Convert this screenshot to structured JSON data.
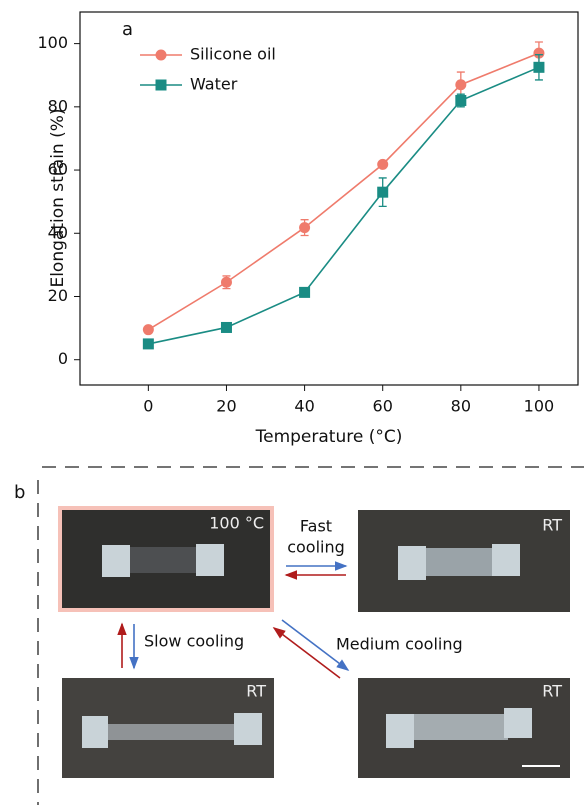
{
  "chart_data": {
    "type": "line",
    "panel_label": "a",
    "x_label": "Temperature (°C)",
    "y_label": "Elongation strain (%)",
    "x": [
      0,
      20,
      40,
      60,
      80,
      100
    ],
    "series": [
      {
        "name": "Silicone oil",
        "color": "#ef7b6c",
        "marker": "circle",
        "values": [
          9.5,
          24.5,
          41.8,
          61.8,
          87,
          97
        ],
        "errors": [
          0.5,
          2,
          2.5,
          0.8,
          4,
          3.5
        ]
      },
      {
        "name": "Water",
        "color": "#1a8c84",
        "marker": "square",
        "values": [
          5,
          10.2,
          21.3,
          53,
          82,
          92.5
        ],
        "errors": [
          0.5,
          0.5,
          0.8,
          4.5,
          2,
          4
        ]
      }
    ],
    "xlim": [
      -17.5,
      110
    ],
    "ylim": [
      -8,
      110
    ],
    "xticks": [
      0,
      20,
      40,
      60,
      80,
      100
    ],
    "yticks": [
      0,
      20,
      40,
      60,
      80,
      100
    ],
    "legend": "upper left"
  },
  "panel_b": {
    "label": "b",
    "photos": [
      {
        "label": "100 °C"
      },
      {
        "label": "RT"
      },
      {
        "label": "RT"
      },
      {
        "label": "RT"
      }
    ],
    "fast_cooling": [
      "Fast",
      "cooling"
    ],
    "slow_cooling": "Slow cooling",
    "medium_cooling": "Medium cooling"
  }
}
